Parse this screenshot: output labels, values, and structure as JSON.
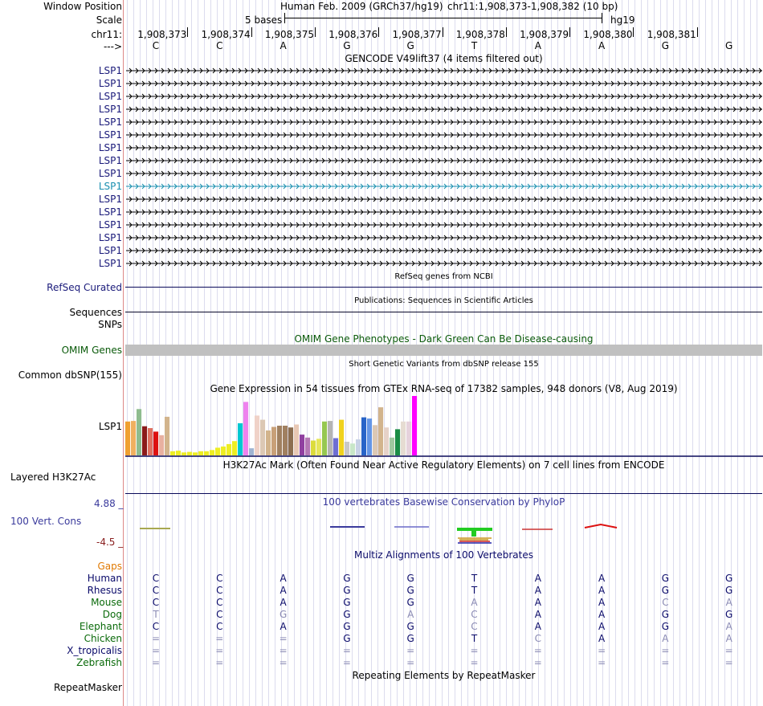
{
  "colors": {
    "label_navy": "#1a1a7a",
    "omim_green": "#0a5a0a",
    "gaps_orange": "#e07800",
    "phylop_blue": "#3a3a9c",
    "phylop_red": "#8a2020",
    "selected_cyan": "#1a8fb0",
    "gene_navy": "#0a0a5a"
  },
  "header": {
    "window_position_label": "Window Position",
    "assembly_title": "Human Feb. 2009 (GRCh37/hg19)",
    "coordinates": "chr11:1,908,373-1,908,382 (10 bp)",
    "scale_label": "Scale",
    "scale_text": "5 bases",
    "scale_assembly": "hg19",
    "chrom_label": "chr11:",
    "strand_label": "--->",
    "positions": [
      "1,908,373",
      "1,908,374",
      "1,908,375",
      "1,908,376",
      "1,908,377",
      "1,908,378",
      "1,908,379",
      "1,908,380",
      "1,908,381"
    ],
    "bases": [
      "C",
      "C",
      "A",
      "G",
      "G",
      "T",
      "A",
      "A",
      "G",
      "G"
    ]
  },
  "gencode": {
    "title": "GENCODE V49lift37 (4 items filtered out)",
    "genes": [
      "LSP1",
      "LSP1",
      "LSP1",
      "LSP1",
      "LSP1",
      "LSP1",
      "LSP1",
      "LSP1",
      "LSP1",
      "LSP1",
      "LSP1",
      "LSP1",
      "LSP1",
      "LSP1",
      "LSP1",
      "LSP1"
    ],
    "selected_index": 9
  },
  "refseq": {
    "title": "RefSeq genes from NCBI",
    "label": "RefSeq Curated"
  },
  "publications": {
    "title": "Publications: Sequences in Scientific Articles",
    "label_sequences": "Sequences",
    "label_snps": "SNPs"
  },
  "omim": {
    "title": "OMIM Gene Phenotypes - Dark Green Can Be Disease-causing",
    "label": "OMIM Genes"
  },
  "dbsnp": {
    "title": "Short Genetic Variants from dbSNP release 155",
    "label": "Common dbSNP(155)"
  },
  "gtex": {
    "title": "Gene Expression in 54 tissues from GTEx RNA-seq of 17382 samples, 948 donors (V8, Aug 2019)",
    "label": "LSP1",
    "bars": [
      {
        "v": 0.57,
        "c": "#f0a030"
      },
      {
        "v": 0.58,
        "c": "#f0b060"
      },
      {
        "v": 0.78,
        "c": "#8fbc8f"
      },
      {
        "v": 0.49,
        "c": "#8b1a1a"
      },
      {
        "v": 0.46,
        "c": "#e07060"
      },
      {
        "v": 0.4,
        "c": "#dd1111"
      },
      {
        "v": 0.34,
        "c": "#e8b0a0"
      },
      {
        "v": 0.65,
        "c": "#d2b48c"
      },
      {
        "v": 0.07,
        "c": "#eeee22"
      },
      {
        "v": 0.08,
        "c": "#eeee22"
      },
      {
        "v": 0.05,
        "c": "#eeee22"
      },
      {
        "v": 0.06,
        "c": "#eeee22"
      },
      {
        "v": 0.05,
        "c": "#eeee22"
      },
      {
        "v": 0.07,
        "c": "#eeee22"
      },
      {
        "v": 0.07,
        "c": "#eeee22"
      },
      {
        "v": 0.09,
        "c": "#eeee22"
      },
      {
        "v": 0.13,
        "c": "#eeee22"
      },
      {
        "v": 0.15,
        "c": "#eeee22"
      },
      {
        "v": 0.19,
        "c": "#eeee22"
      },
      {
        "v": 0.24,
        "c": "#eeee22"
      },
      {
        "v": 0.54,
        "c": "#00c8d2"
      },
      {
        "v": 0.9,
        "c": "#ee82ee"
      },
      {
        "v": 0.12,
        "c": "#a0b4d2"
      },
      {
        "v": 0.67,
        "c": "#f0d2c8"
      },
      {
        "v": 0.6,
        "c": "#dcc8b4"
      },
      {
        "v": 0.42,
        "c": "#d2b48c"
      },
      {
        "v": 0.48,
        "c": "#c8a078"
      },
      {
        "v": 0.5,
        "c": "#a08060"
      },
      {
        "v": 0.5,
        "c": "#a08060"
      },
      {
        "v": 0.47,
        "c": "#8c6e50"
      },
      {
        "v": 0.52,
        "c": "#e8c8b4"
      },
      {
        "v": 0.35,
        "c": "#9040a0"
      },
      {
        "v": 0.3,
        "c": "#b478b4"
      },
      {
        "v": 0.25,
        "c": "#dcdc3c"
      },
      {
        "v": 0.28,
        "c": "#e6e65a"
      },
      {
        "v": 0.57,
        "c": "#96c850"
      },
      {
        "v": 0.58,
        "c": "#b4b4b4"
      },
      {
        "v": 0.29,
        "c": "#6e6ed2"
      },
      {
        "v": 0.6,
        "c": "#f0d21e"
      },
      {
        "v": 0.23,
        "c": "#c8c8c8"
      },
      {
        "v": 0.2,
        "c": "#c8e6c8"
      },
      {
        "v": 0.27,
        "c": "#c8d2e6"
      },
      {
        "v": 0.64,
        "c": "#2864c8"
      },
      {
        "v": 0.62,
        "c": "#6496e6"
      },
      {
        "v": 0.51,
        "c": "#dcc8b4"
      },
      {
        "v": 0.81,
        "c": "#d2b48c"
      },
      {
        "v": 0.47,
        "c": "#e6d2c8"
      },
      {
        "v": 0.3,
        "c": "#a0c8a0"
      },
      {
        "v": 0.44,
        "c": "#1a8c46"
      },
      {
        "v": 0.57,
        "c": "#e6dcd2"
      },
      {
        "v": 0.57,
        "c": "#e6d2dc"
      },
      {
        "v": 1.0,
        "c": "#ff00ff"
      }
    ]
  },
  "h3k27ac": {
    "title": "H3K27Ac Mark (Often Found Near Active Regulatory Elements) on 7 cell lines from ENCODE",
    "label": "Layered H3K27Ac"
  },
  "phylop": {
    "title": "100 vertebrates Basewise Conservation by PhyloP",
    "label": "100 Vert. Cons",
    "max_label": "4.88 _",
    "min_label": "-4.5 _"
  },
  "multiz": {
    "title": "Multiz Alignments of 100 Vertebrates",
    "gaps_label": "Gaps",
    "species": [
      {
        "name": "Human",
        "color": "#0a0a6a",
        "bases": [
          "C",
          "C",
          "A",
          "G",
          "G",
          "T",
          "A",
          "A",
          "G",
          "G"
        ],
        "faded": [
          0,
          0,
          0,
          0,
          0,
          0,
          0,
          0,
          0,
          0
        ]
      },
      {
        "name": "Rhesus",
        "color": "#0a0a6a",
        "bases": [
          "C",
          "C",
          "A",
          "G",
          "G",
          "T",
          "A",
          "A",
          "G",
          "G"
        ],
        "faded": [
          0,
          0,
          0,
          0,
          0,
          0,
          0,
          0,
          0,
          0
        ]
      },
      {
        "name": "Mouse",
        "color": "#0a6a0a",
        "bases": [
          "C",
          "C",
          "A",
          "G",
          "G",
          "A",
          "A",
          "A",
          "C",
          "A"
        ],
        "faded": [
          0,
          0,
          0,
          0,
          0,
          1,
          0,
          0,
          1,
          1
        ]
      },
      {
        "name": "Dog",
        "color": "#0a6a0a",
        "bases": [
          "T",
          "C",
          "G",
          "G",
          "A",
          "C",
          "A",
          "A",
          "G",
          "G"
        ],
        "faded": [
          1,
          0,
          1,
          0,
          1,
          1,
          0,
          0,
          0,
          0
        ]
      },
      {
        "name": "Elephant",
        "color": "#0a6a0a",
        "bases": [
          "C",
          "C",
          "A",
          "G",
          "G",
          "C",
          "A",
          "A",
          "G",
          "A"
        ],
        "faded": [
          0,
          0,
          0,
          0,
          0,
          1,
          0,
          0,
          0,
          1
        ]
      },
      {
        "name": "Chicken",
        "color": "#0a6a0a",
        "bases": [
          "=",
          "=",
          "=",
          "G",
          "G",
          "T",
          "C",
          "A",
          "A",
          "A"
        ],
        "faded": [
          1,
          1,
          1,
          0,
          0,
          0,
          1,
          0,
          1,
          1
        ]
      },
      {
        "name": "X_tropicalis",
        "color": "#0a0a6a",
        "bases": [
          "=",
          "=",
          "=",
          "=",
          "=",
          "=",
          "=",
          "=",
          "=",
          "="
        ],
        "faded": [
          1,
          1,
          1,
          1,
          1,
          1,
          1,
          1,
          1,
          1
        ]
      },
      {
        "name": "Zebrafish",
        "color": "#0a6a0a",
        "bases": [
          "=",
          "=",
          "=",
          "=",
          "=",
          "=",
          "=",
          "=",
          "=",
          "="
        ],
        "faded": [
          1,
          1,
          1,
          1,
          1,
          1,
          1,
          1,
          1,
          1
        ]
      }
    ]
  },
  "repeatmasker": {
    "title": "Repeating Elements by RepeatMasker",
    "label": "RepeatMasker"
  }
}
